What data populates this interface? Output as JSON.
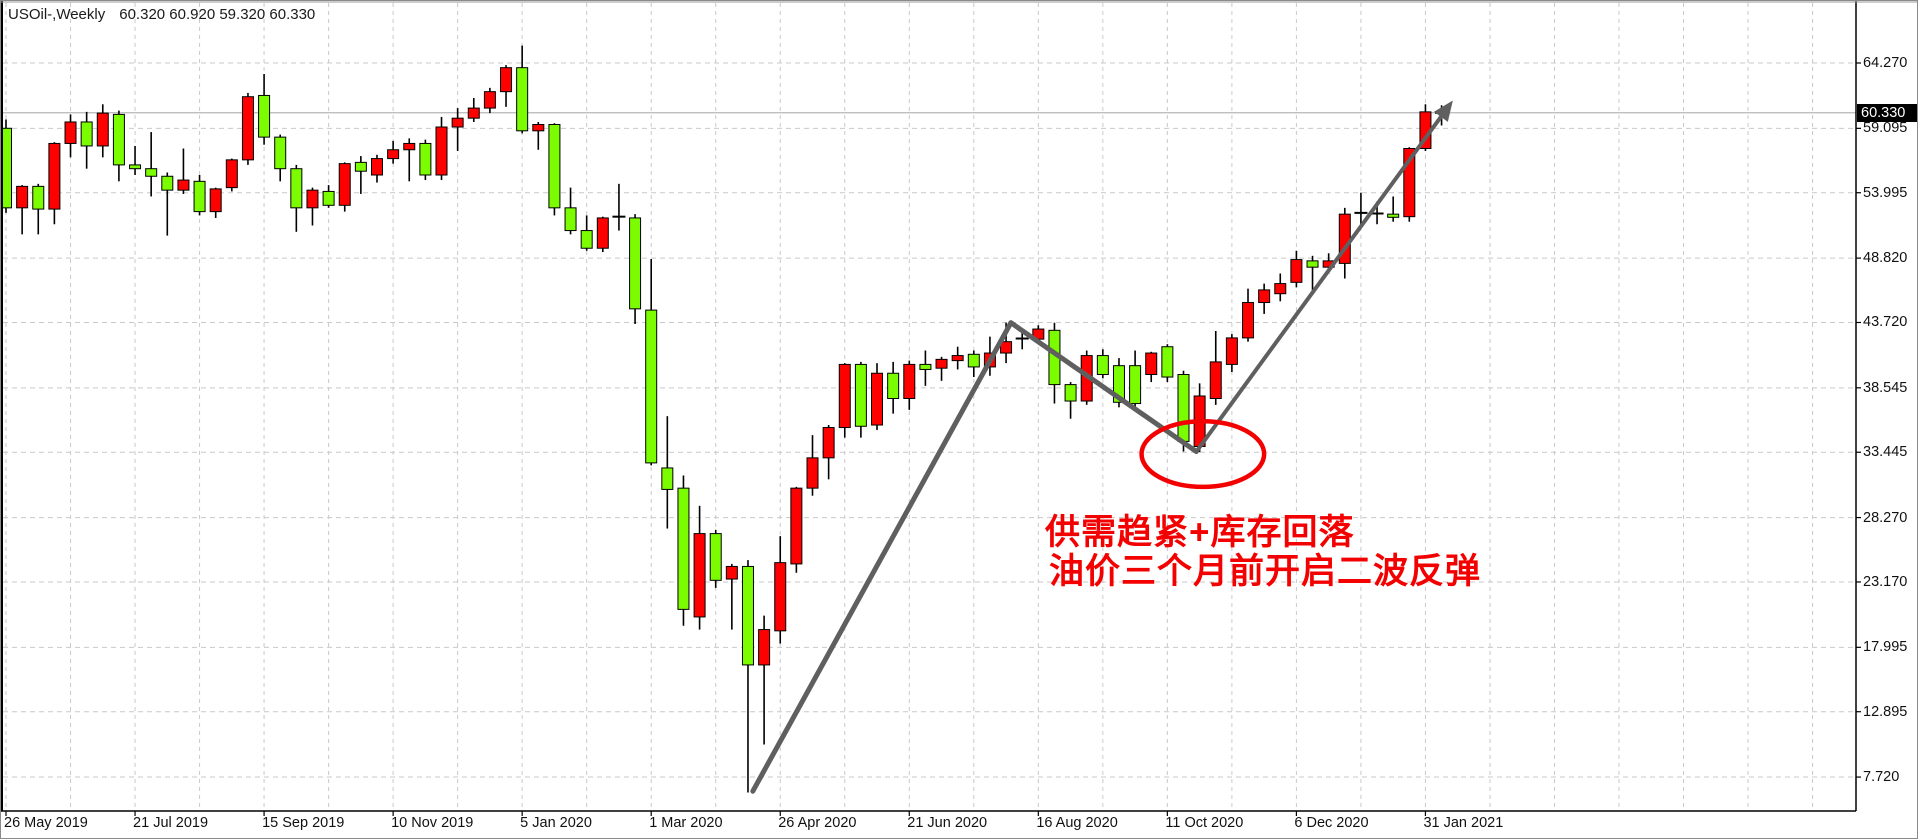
{
  "header": {
    "symbol_period": "USOil-,Weekly",
    "ohlc_string": "60.320 60.920 59.320 60.330"
  },
  "colors": {
    "bull_body": "#ff0000",
    "bear_body": "#7cfc00",
    "wick": "#000000",
    "outline": "#000000",
    "grid": "#c9c9c9",
    "frame": "#000000",
    "background": "#ffffff",
    "current_price_line": "#b6b6b6",
    "badge_bg": "#000000",
    "badge_text": "#ffffff",
    "trend_line": "#5f5f5f",
    "annotation_red": "#f30000"
  },
  "price_axis": {
    "labels": [
      "64.270",
      "59.095",
      "53.995",
      "48.820",
      "43.720",
      "38.545",
      "33.445",
      "28.270",
      "23.170",
      "17.995",
      "12.895",
      "7.720"
    ],
    "current_price_label": "60.330"
  },
  "time_axis": {
    "labels": [
      {
        "text": "26 May 2019",
        "week": 0
      },
      {
        "text": "21 Jul 2019",
        "week": 8
      },
      {
        "text": "15 Sep 2019",
        "week": 16
      },
      {
        "text": "10 Nov 2019",
        "week": 24
      },
      {
        "text": "5 Jan 2020",
        "week": 32
      },
      {
        "text": "1 Mar 2020",
        "week": 40
      },
      {
        "text": "26 Apr 2020",
        "week": 48
      },
      {
        "text": "21 Jun 2020",
        "week": 56
      },
      {
        "text": "16 Aug 2020",
        "week": 64
      },
      {
        "text": "11 Oct 2020",
        "week": 72
      },
      {
        "text": "6 Dec 2020",
        "week": 80
      },
      {
        "text": "31 Jan 2021",
        "week": 88
      }
    ]
  },
  "annotations": {
    "text_line1": "供需趋紧+库存回落",
    "text_line2": "油价三个月前开启二波反弹",
    "ellipse": {
      "week": 74.2,
      "price": 33.3,
      "rx_weeks": 3.8,
      "ry_price": 2.6
    },
    "trend_lines": [
      {
        "from_week": 46.3,
        "from_price": 6.6,
        "to_week": 62.3,
        "to_price": 43.7,
        "width": 5,
        "arrow": false
      },
      {
        "from_week": 62.3,
        "from_price": 43.7,
        "to_week": 73.8,
        "to_price": 33.5,
        "width": 5,
        "arrow": false
      },
      {
        "from_week": 73.8,
        "from_price": 33.5,
        "to_week": 89.7,
        "to_price": 61.3,
        "width": 4,
        "arrow": true
      }
    ]
  },
  "chart_data": {
    "type": "candlestick",
    "title": "USOil-,Weekly  60.320 60.920 59.320 60.330",
    "symbol": "USOil",
    "timeframe": "Weekly",
    "ylim": [
      5.0,
      69.0
    ],
    "grid": "dashed",
    "y_axis_ticks": [
      64.27,
      59.095,
      53.995,
      48.82,
      43.72,
      38.545,
      33.445,
      28.27,
      23.17,
      17.995,
      12.895,
      7.72
    ],
    "current_price": 60.33,
    "last_bar": {
      "open": 60.32,
      "high": 60.92,
      "low": 59.32,
      "close": 60.33
    },
    "candles": [
      {
        "d": "2019-05-26",
        "o": 59.1,
        "h": 59.8,
        "l": 52.4,
        "c": 52.8
      },
      {
        "d": "2019-06-02",
        "o": 52.8,
        "h": 54.6,
        "l": 50.7,
        "c": 54.5
      },
      {
        "d": "2019-06-09",
        "o": 54.5,
        "h": 54.7,
        "l": 50.7,
        "c": 52.7
      },
      {
        "d": "2019-06-16",
        "o": 52.7,
        "h": 58.0,
        "l": 51.5,
        "c": 57.9
      },
      {
        "d": "2019-06-23",
        "o": 57.9,
        "h": 60.2,
        "l": 56.8,
        "c": 59.6
      },
      {
        "d": "2019-06-30",
        "o": 59.6,
        "h": 60.4,
        "l": 55.9,
        "c": 57.7
      },
      {
        "d": "2019-07-07",
        "o": 57.7,
        "h": 61.0,
        "l": 56.8,
        "c": 60.3
      },
      {
        "d": "2019-07-14",
        "o": 60.2,
        "h": 60.5,
        "l": 54.9,
        "c": 56.2
      },
      {
        "d": "2019-07-21",
        "o": 56.2,
        "h": 57.7,
        "l": 55.4,
        "c": 55.9
      },
      {
        "d": "2019-07-28",
        "o": 55.9,
        "h": 58.8,
        "l": 53.7,
        "c": 55.3
      },
      {
        "d": "2019-08-04",
        "o": 55.3,
        "h": 55.6,
        "l": 50.6,
        "c": 54.2
      },
      {
        "d": "2019-08-11",
        "o": 54.2,
        "h": 57.5,
        "l": 53.9,
        "c": 55.0
      },
      {
        "d": "2019-08-18",
        "o": 54.9,
        "h": 55.4,
        "l": 52.2,
        "c": 52.5
      },
      {
        "d": "2019-08-25",
        "o": 52.5,
        "h": 54.4,
        "l": 52.0,
        "c": 54.3
      },
      {
        "d": "2019-09-01",
        "o": 54.4,
        "h": 56.7,
        "l": 54.1,
        "c": 56.6
      },
      {
        "d": "2019-09-08",
        "o": 56.6,
        "h": 61.9,
        "l": 56.2,
        "c": 61.6
      },
      {
        "d": "2019-09-15",
        "o": 61.7,
        "h": 63.4,
        "l": 57.8,
        "c": 58.4
      },
      {
        "d": "2019-09-22",
        "o": 58.4,
        "h": 58.6,
        "l": 54.9,
        "c": 55.9
      },
      {
        "d": "2019-09-29",
        "o": 55.9,
        "h": 56.2,
        "l": 50.9,
        "c": 52.8
      },
      {
        "d": "2019-10-06",
        "o": 52.8,
        "h": 54.4,
        "l": 51.4,
        "c": 54.2
      },
      {
        "d": "2019-10-13",
        "o": 54.1,
        "h": 54.6,
        "l": 52.8,
        "c": 53.0
      },
      {
        "d": "2019-10-20",
        "o": 53.0,
        "h": 56.4,
        "l": 52.5,
        "c": 56.3
      },
      {
        "d": "2019-10-27",
        "o": 56.4,
        "h": 56.9,
        "l": 53.9,
        "c": 55.7
      },
      {
        "d": "2019-11-03",
        "o": 55.4,
        "h": 57.0,
        "l": 54.8,
        "c": 56.7
      },
      {
        "d": "2019-11-10",
        "o": 56.7,
        "h": 58.1,
        "l": 56.3,
        "c": 57.4
      },
      {
        "d": "2019-11-17",
        "o": 57.4,
        "h": 58.3,
        "l": 54.9,
        "c": 57.9
      },
      {
        "d": "2019-11-24",
        "o": 57.9,
        "h": 58.2,
        "l": 55.0,
        "c": 55.4
      },
      {
        "d": "2019-12-01",
        "o": 55.4,
        "h": 60.0,
        "l": 55.0,
        "c": 59.2
      },
      {
        "d": "2019-12-08",
        "o": 59.2,
        "h": 60.7,
        "l": 57.3,
        "c": 59.9
      },
      {
        "d": "2019-12-15",
        "o": 59.9,
        "h": 61.5,
        "l": 59.6,
        "c": 60.7
      },
      {
        "d": "2019-12-22",
        "o": 60.7,
        "h": 62.3,
        "l": 60.3,
        "c": 62.0
      },
      {
        "d": "2019-12-29",
        "o": 62.0,
        "h": 64.1,
        "l": 60.8,
        "c": 63.9
      },
      {
        "d": "2020-01-05",
        "o": 63.9,
        "h": 65.65,
        "l": 58.7,
        "c": 58.9
      },
      {
        "d": "2020-01-12",
        "o": 58.9,
        "h": 59.6,
        "l": 57.4,
        "c": 59.4
      },
      {
        "d": "2020-01-19",
        "o": 59.4,
        "h": 59.5,
        "l": 52.2,
        "c": 52.8
      },
      {
        "d": "2020-01-26",
        "o": 52.8,
        "h": 54.4,
        "l": 50.7,
        "c": 51.0
      },
      {
        "d": "2020-02-02",
        "o": 51.0,
        "h": 52.2,
        "l": 49.4,
        "c": 49.6
      },
      {
        "d": "2020-02-09",
        "o": 49.6,
        "h": 52.1,
        "l": 49.3,
        "c": 52.0
      },
      {
        "d": "2020-02-16",
        "o": 52.05,
        "h": 54.7,
        "l": 51.0,
        "c": 52.1
      },
      {
        "d": "2020-02-23",
        "o": 52.0,
        "h": 52.3,
        "l": 43.6,
        "c": 44.8
      },
      {
        "d": "2020-03-01",
        "o": 44.7,
        "h": 48.75,
        "l": 32.4,
        "c": 32.6
      },
      {
        "d": "2020-03-08",
        "o": 32.2,
        "h": 36.3,
        "l": 27.4,
        "c": 30.5
      },
      {
        "d": "2020-03-15",
        "o": 30.6,
        "h": 31.6,
        "l": 19.7,
        "c": 21.0
      },
      {
        "d": "2020-03-22",
        "o": 20.4,
        "h": 29.2,
        "l": 19.4,
        "c": 27.0
      },
      {
        "d": "2020-03-29",
        "o": 27.0,
        "h": 27.3,
        "l": 22.7,
        "c": 23.3
      },
      {
        "d": "2020-04-05",
        "o": 23.4,
        "h": 24.6,
        "l": 19.4,
        "c": 24.4
      },
      {
        "d": "2020-04-12",
        "o": 24.4,
        "h": 24.9,
        "l": 6.5,
        "c": 16.6
      },
      {
        "d": "2020-04-19",
        "o": 16.6,
        "h": 20.5,
        "l": 10.3,
        "c": 19.4
      },
      {
        "d": "2020-04-26",
        "o": 19.3,
        "h": 26.8,
        "l": 18.3,
        "c": 24.7
      },
      {
        "d": "2020-05-03",
        "o": 24.6,
        "h": 30.7,
        "l": 23.9,
        "c": 30.6
      },
      {
        "d": "2020-05-10",
        "o": 30.6,
        "h": 34.8,
        "l": 30.0,
        "c": 33.0
      },
      {
        "d": "2020-05-17",
        "o": 33.0,
        "h": 35.6,
        "l": 31.3,
        "c": 35.4
      },
      {
        "d": "2020-05-24",
        "o": 35.4,
        "h": 40.5,
        "l": 34.6,
        "c": 40.4
      },
      {
        "d": "2020-05-31",
        "o": 40.4,
        "h": 40.6,
        "l": 34.6,
        "c": 35.5
      },
      {
        "d": "2020-06-07",
        "o": 35.6,
        "h": 40.5,
        "l": 35.2,
        "c": 39.7
      },
      {
        "d": "2020-06-14",
        "o": 39.7,
        "h": 40.6,
        "l": 36.5,
        "c": 37.7
      },
      {
        "d": "2020-06-21",
        "o": 37.7,
        "h": 40.7,
        "l": 36.8,
        "c": 40.4
      },
      {
        "d": "2020-06-28",
        "o": 40.4,
        "h": 41.5,
        "l": 38.7,
        "c": 40.0
      },
      {
        "d": "2020-07-05",
        "o": 40.1,
        "h": 41.0,
        "l": 39.1,
        "c": 40.8
      },
      {
        "d": "2020-07-12",
        "o": 40.7,
        "h": 41.8,
        "l": 40.0,
        "c": 41.1
      },
      {
        "d": "2020-07-19",
        "o": 41.2,
        "h": 41.5,
        "l": 39.4,
        "c": 40.2
      },
      {
        "d": "2020-07-26",
        "o": 40.2,
        "h": 42.6,
        "l": 39.5,
        "c": 41.3
      },
      {
        "d": "2020-08-02",
        "o": 41.3,
        "h": 43.7,
        "l": 40.5,
        "c": 42.2
      },
      {
        "d": "2020-08-09",
        "o": 42.4,
        "h": 43.2,
        "l": 41.6,
        "c": 42.45
      },
      {
        "d": "2020-08-16",
        "o": 42.4,
        "h": 43.5,
        "l": 42.0,
        "c": 43.2
      },
      {
        "d": "2020-08-23",
        "o": 43.1,
        "h": 43.7,
        "l": 37.3,
        "c": 38.8
      },
      {
        "d": "2020-08-30",
        "o": 38.8,
        "h": 39.0,
        "l": 36.1,
        "c": 37.5
      },
      {
        "d": "2020-09-06",
        "o": 37.5,
        "h": 41.5,
        "l": 37.2,
        "c": 41.1
      },
      {
        "d": "2020-09-13",
        "o": 41.1,
        "h": 41.6,
        "l": 39.3,
        "c": 39.6
      },
      {
        "d": "2020-09-20",
        "o": 40.3,
        "h": 40.9,
        "l": 37.0,
        "c": 37.4
      },
      {
        "d": "2020-09-27",
        "o": 40.3,
        "h": 41.5,
        "l": 36.9,
        "c": 37.3
      },
      {
        "d": "2020-10-04",
        "o": 39.6,
        "h": 41.4,
        "l": 39.0,
        "c": 41.3
      },
      {
        "d": "2020-10-11",
        "o": 41.8,
        "h": 42.0,
        "l": 39.0,
        "c": 39.4
      },
      {
        "d": "2020-10-18",
        "o": 39.6,
        "h": 39.9,
        "l": 33.5,
        "c": 34.3
      },
      {
        "d": "2020-10-25",
        "o": 33.9,
        "h": 38.9,
        "l": 33.45,
        "c": 37.9
      },
      {
        "d": "2020-11-01",
        "o": 37.7,
        "h": 43.05,
        "l": 37.2,
        "c": 40.6
      },
      {
        "d": "2020-11-08",
        "o": 40.4,
        "h": 42.8,
        "l": 39.8,
        "c": 42.5
      },
      {
        "d": "2020-11-15",
        "o": 42.5,
        "h": 46.4,
        "l": 42.2,
        "c": 45.3
      },
      {
        "d": "2020-11-22",
        "o": 45.3,
        "h": 46.8,
        "l": 44.4,
        "c": 46.3
      },
      {
        "d": "2020-11-29",
        "o": 46.0,
        "h": 47.6,
        "l": 45.4,
        "c": 46.8
      },
      {
        "d": "2020-12-06",
        "o": 46.9,
        "h": 49.4,
        "l": 46.5,
        "c": 48.7
      },
      {
        "d": "2020-12-13",
        "o": 48.6,
        "h": 49.0,
        "l": 46.2,
        "c": 48.1
      },
      {
        "d": "2020-12-20",
        "o": 48.1,
        "h": 49.2,
        "l": 47.6,
        "c": 48.6
      },
      {
        "d": "2020-12-27",
        "o": 48.4,
        "h": 52.8,
        "l": 47.2,
        "c": 52.3
      },
      {
        "d": "2021-01-03",
        "o": 52.35,
        "h": 54.0,
        "l": 51.5,
        "c": 52.4
      },
      {
        "d": "2021-01-10",
        "o": 52.4,
        "h": 53.3,
        "l": 51.5,
        "c": 52.35
      },
      {
        "d": "2021-01-17",
        "o": 52.3,
        "h": 53.7,
        "l": 51.7,
        "c": 52.05
      },
      {
        "d": "2021-01-24",
        "o": 52.1,
        "h": 57.6,
        "l": 51.7,
        "c": 57.5
      },
      {
        "d": "2021-01-31",
        "o": 57.5,
        "h": 61.0,
        "l": 57.3,
        "c": 60.4
      },
      {
        "d": "2021-02-07",
        "o": 60.32,
        "h": 60.92,
        "l": 59.32,
        "c": 60.33
      }
    ]
  }
}
